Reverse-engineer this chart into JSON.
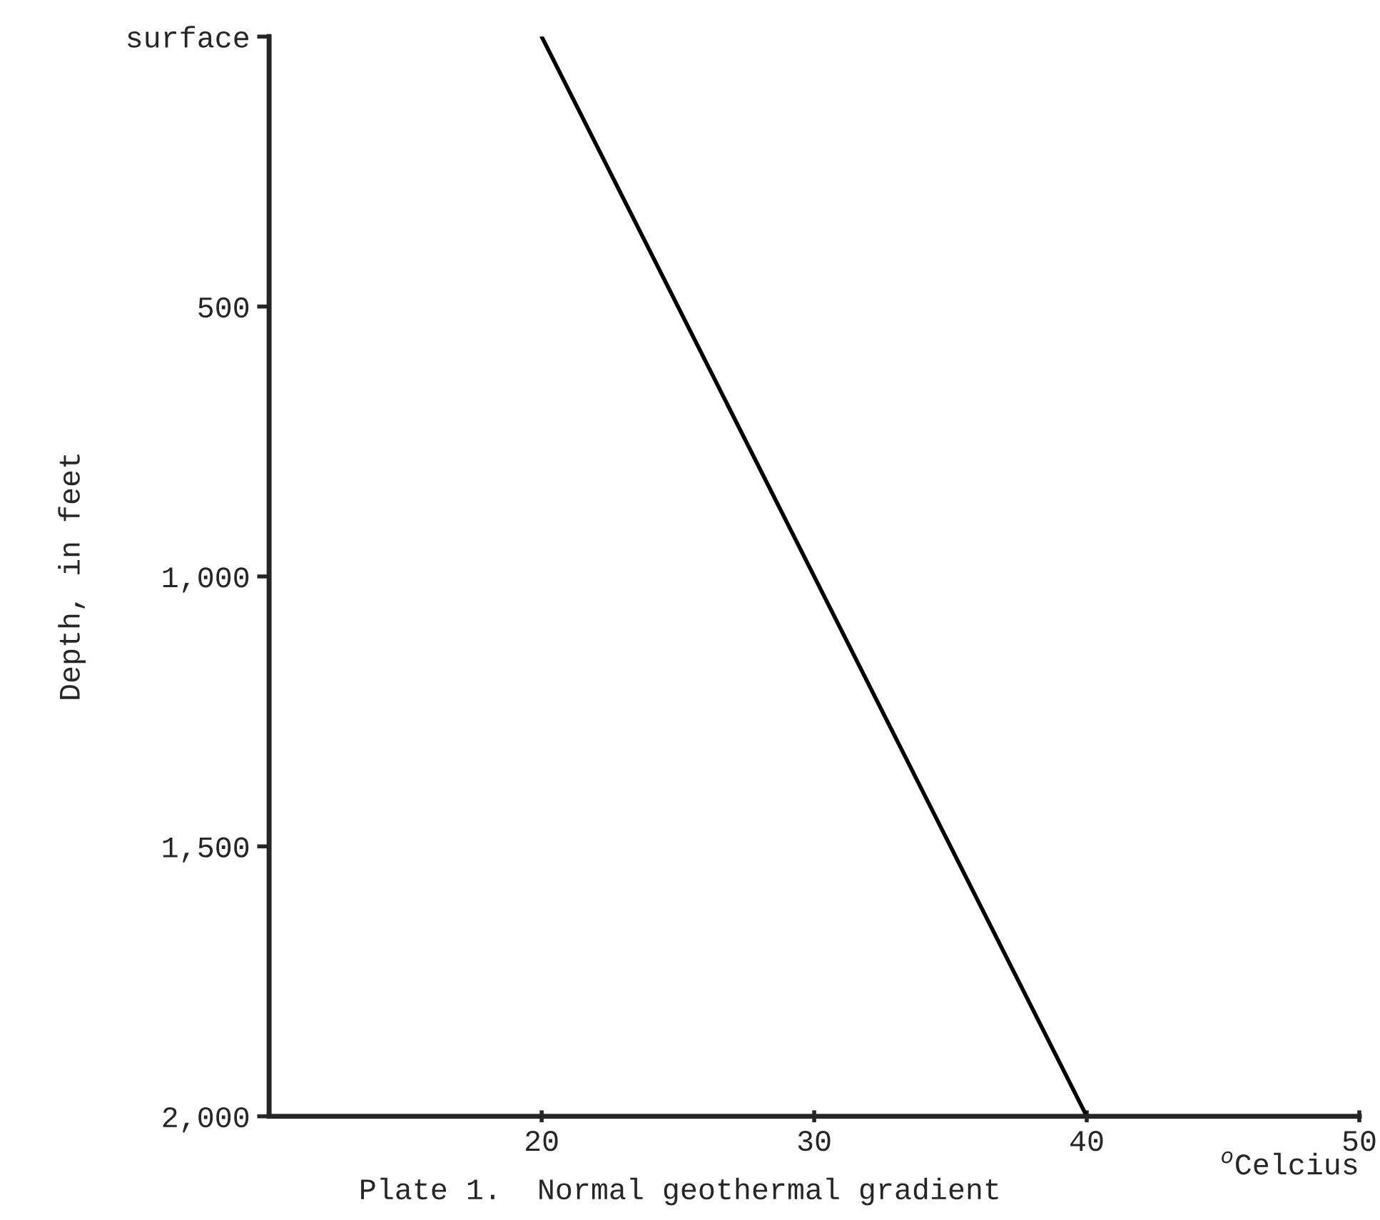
{
  "chart_data": {
    "type": "line",
    "x": [
      20,
      40
    ],
    "series": [
      {
        "color": "#000000",
        "values": [
          0,
          2000
        ]
      }
    ],
    "xlim": [
      10,
      50
    ],
    "xticks": [
      20,
      30,
      40,
      50
    ],
    "ylim": [
      2000,
      0
    ],
    "yticks": [
      {
        "value": 0,
        "label": "surface"
      },
      500,
      {
        "value": 1000,
        "label": "1,000"
      },
      {
        "value": 1500,
        "label": "1,500"
      },
      {
        "value": 2000,
        "label": "2,000"
      }
    ],
    "ylabel": "Depth, in feet",
    "xlabel": "$^{o}$Celcius",
    "annotations": [
      "Plate 1.  Normal geothermal gradient"
    ],
    "grid": false,
    "legend": false,
    "marker": "none",
    "line_style": "solid"
  }
}
